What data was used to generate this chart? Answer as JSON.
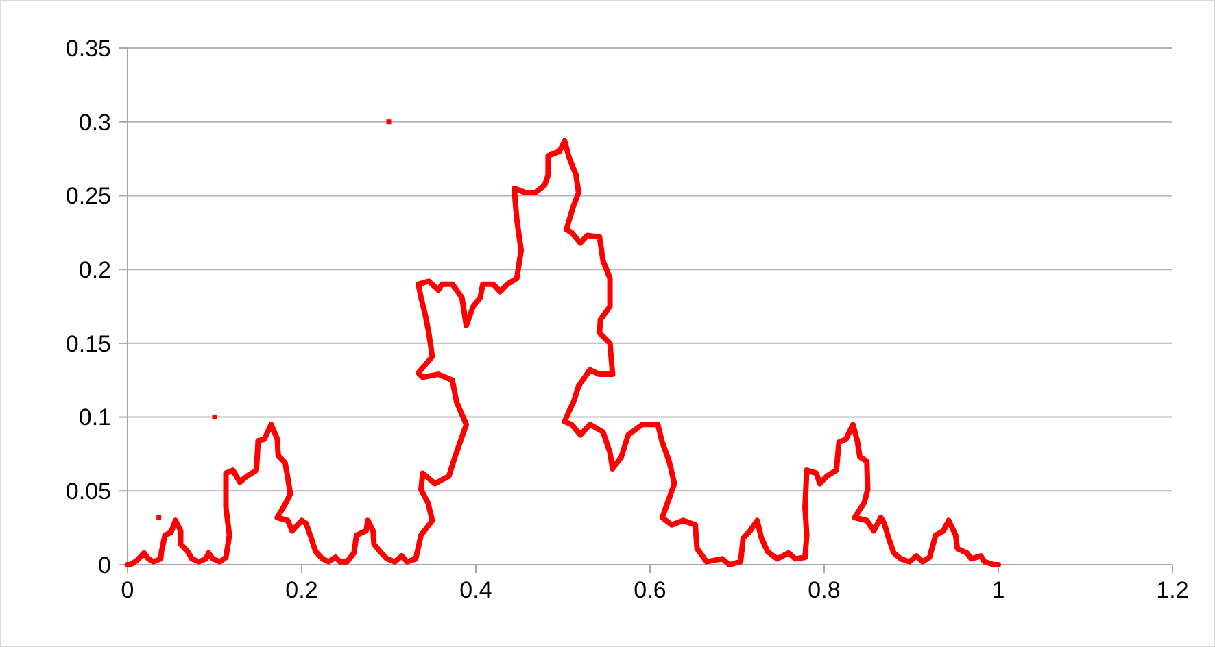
{
  "chart_data": {
    "type": "scatter",
    "xlim": [
      0,
      1.2
    ],
    "xticks": [
      0,
      0.2,
      0.4,
      0.6,
      0.8,
      1,
      1.2
    ],
    "ylim": [
      0,
      0.35
    ],
    "yticks": [
      0,
      0.05,
      0.1,
      0.15,
      0.2,
      0.25,
      0.3,
      0.35
    ],
    "grid": "y",
    "series": [
      {
        "type": "line",
        "color": "#ff0000",
        "line_style": "solid",
        "marker": "none",
        "x": [
          0,
          0.003,
          0.011,
          0.019,
          0.024,
          0.03,
          0.038,
          0.039,
          0.043,
          0.05,
          0.055,
          0.061,
          0.061,
          0.069,
          0.074,
          0.082,
          0.09,
          0.093,
          0.098,
          0.106,
          0.113,
          0.117,
          0.113,
          0.113,
          0.121,
          0.129,
          0.137,
          0.148,
          0.15,
          0.157,
          0.165,
          0.172,
          0.173,
          0.181,
          0.184,
          0.187,
          0.181,
          0.172,
          0.184,
          0.189,
          0.2,
          0.205,
          0.211,
          0.216,
          0.224,
          0.231,
          0.239,
          0.244,
          0.252,
          0.26,
          0.263,
          0.274,
          0.276,
          0.282,
          0.283,
          0.29,
          0.298,
          0.307,
          0.315,
          0.321,
          0.331,
          0.337,
          0.35,
          0.345,
          0.337,
          0.339,
          0.353,
          0.369,
          0.376,
          0.389,
          0.378,
          0.373,
          0.357,
          0.339,
          0.334,
          0.35,
          0.346,
          0.342,
          0.337,
          0.334,
          0.346,
          0.357,
          0.361,
          0.373,
          0.384,
          0.389,
          0.397,
          0.405,
          0.408,
          0.42,
          0.428,
          0.436,
          0.447,
          0.452,
          0.447,
          0.444,
          0.457,
          0.468,
          0.479,
          0.483,
          0.483,
          0.496,
          0.502,
          0.507,
          0.515,
          0.518,
          0.512,
          0.504,
          0.51,
          0.52,
          0.528,
          0.542,
          0.546,
          0.554,
          0.554,
          0.543,
          0.542,
          0.554,
          0.557,
          0.542,
          0.531,
          0.518,
          0.512,
          0.507,
          0.502,
          0.51,
          0.52,
          0.531,
          0.546,
          0.554,
          0.557,
          0.567,
          0.575,
          0.591,
          0.609,
          0.614,
          0.622,
          0.628,
          0.622,
          0.614,
          0.625,
          0.638,
          0.652,
          0.654,
          0.665,
          0.683,
          0.691,
          0.704,
          0.707,
          0.715,
          0.723,
          0.728,
          0.735,
          0.746,
          0.759,
          0.767,
          0.778,
          0.78,
          0.778,
          0.78,
          0.791,
          0.795,
          0.803,
          0.814,
          0.817,
          0.825,
          0.833,
          0.838,
          0.841,
          0.849,
          0.85,
          0.846,
          0.835,
          0.849,
          0.857,
          0.865,
          0.869,
          0.874,
          0.88,
          0.888,
          0.898,
          0.906,
          0.913,
          0.921,
          0.928,
          0.937,
          0.943,
          0.951,
          0.953,
          0.964,
          0.969,
          0.98,
          0.984,
          0.995,
          1
        ],
        "values": [
          0,
          0,
          0.003,
          0.008,
          0.004,
          0.002,
          0.004,
          0.009,
          0.02,
          0.022,
          0.03,
          0.023,
          0.014,
          0.009,
          0.004,
          0.002,
          0.004,
          0.008,
          0.004,
          0.002,
          0.005,
          0.02,
          0.039,
          0.062,
          0.064,
          0.056,
          0.06,
          0.064,
          0.084,
          0.085,
          0.095,
          0.085,
          0.074,
          0.069,
          0.059,
          0.048,
          0.041,
          0.032,
          0.03,
          0.023,
          0.03,
          0.028,
          0.018,
          0.009,
          0.004,
          0.002,
          0.005,
          0.002,
          0.002,
          0.008,
          0.02,
          0.023,
          0.03,
          0.023,
          0.014,
          0.009,
          0.004,
          0.002,
          0.006,
          0.002,
          0.004,
          0.02,
          0.03,
          0.042,
          0.051,
          0.062,
          0.055,
          0.06,
          0.073,
          0.095,
          0.11,
          0.125,
          0.129,
          0.127,
          0.13,
          0.141,
          0.157,
          0.169,
          0.181,
          0.19,
          0.192,
          0.186,
          0.19,
          0.19,
          0.181,
          0.162,
          0.175,
          0.181,
          0.19,
          0.19,
          0.185,
          0.19,
          0.194,
          0.213,
          0.234,
          0.255,
          0.252,
          0.252,
          0.257,
          0.264,
          0.277,
          0.28,
          0.287,
          0.276,
          0.264,
          0.252,
          0.243,
          0.227,
          0.225,
          0.218,
          0.223,
          0.222,
          0.206,
          0.194,
          0.175,
          0.166,
          0.157,
          0.15,
          0.129,
          0.129,
          0.132,
          0.121,
          0.11,
          0.104,
          0.097,
          0.095,
          0.088,
          0.095,
          0.09,
          0.076,
          0.065,
          0.073,
          0.088,
          0.095,
          0.095,
          0.083,
          0.07,
          0.055,
          0.045,
          0.032,
          0.027,
          0.03,
          0.027,
          0.011,
          0.002,
          0.004,
          0,
          0.002,
          0.018,
          0.023,
          0.03,
          0.018,
          0.009,
          0.004,
          0.008,
          0.004,
          0.005,
          0.02,
          0.039,
          0.064,
          0.062,
          0.055,
          0.06,
          0.064,
          0.083,
          0.085,
          0.095,
          0.084,
          0.073,
          0.07,
          0.051,
          0.042,
          0.032,
          0.03,
          0.023,
          0.032,
          0.028,
          0.018,
          0.008,
          0.004,
          0.002,
          0.006,
          0.002,
          0.005,
          0.02,
          0.023,
          0.03,
          0.02,
          0.011,
          0.008,
          0.004,
          0.006,
          0.002,
          0,
          0
        ]
      },
      {
        "type": "scatter",
        "color": "#ff0000",
        "marker": "square",
        "x": [
          0.036,
          0.1,
          0.3
        ],
        "values": [
          0.032,
          0.1,
          0.3
        ]
      }
    ]
  }
}
